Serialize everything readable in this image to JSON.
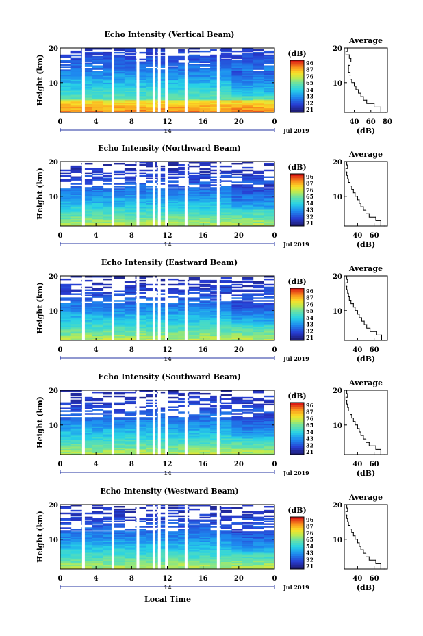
{
  "x_axis_label": "Local Time",
  "chart_data": [
    {
      "type": "heatmap",
      "title": "Echo Intensity (Vertical Beam)",
      "ylabel": "Height (km)",
      "x_ticks": [
        "0",
        "4",
        "8",
        "12",
        "16",
        "20",
        "0"
      ],
      "y_ticks": [
        "20",
        "10"
      ],
      "date_day": "14",
      "date_month": "Jul 2019",
      "xlim": [
        0,
        24
      ],
      "ylim": [
        1.5,
        20
      ],
      "colorbar": {
        "label": "(dB)",
        "ticks": [
          "96",
          "87",
          "76",
          "65",
          "54",
          "43",
          "32",
          "21"
        ],
        "range": [
          21,
          96
        ]
      },
      "gap_times": [
        2.6,
        5.9,
        8.7,
        10.5,
        11.1,
        11.9,
        14.1,
        17.7
      ],
      "profile": {
        "title": "Average",
        "xlabel": "(dB)",
        "x_ticks": [
          "40",
          "60",
          "80"
        ],
        "xlim": [
          28,
          80
        ],
        "height": [
          1.5,
          3,
          4,
          5,
          6,
          7,
          8,
          9,
          10,
          11,
          12,
          13,
          14,
          15,
          16,
          17,
          18,
          19,
          20
        ],
        "value": [
          78,
          72,
          64,
          55,
          51,
          48,
          45,
          42,
          40,
          37,
          35,
          35,
          33,
          33,
          35,
          36,
          34,
          30,
          32
        ]
      }
    },
    {
      "type": "heatmap",
      "title": "Echo Intensity (Northward Beam)",
      "ylabel": "Height (km)",
      "x_ticks": [
        "0",
        "4",
        "8",
        "12",
        "16",
        "20",
        "0"
      ],
      "y_ticks": [
        "20",
        "10"
      ],
      "date_day": "14",
      "date_month": "Jul 2019",
      "xlim": [
        0,
        24
      ],
      "ylim": [
        1.5,
        20
      ],
      "colorbar": {
        "label": "(dB)",
        "ticks": [
          "96",
          "87",
          "76",
          "65",
          "54",
          "43",
          "32",
          "21"
        ],
        "range": [
          21,
          96
        ]
      },
      "gap_times": [
        2.6,
        5.9,
        8.7,
        10.5,
        11.1,
        11.9,
        14.1,
        17.7
      ],
      "profile": {
        "title": "Average",
        "xlabel": "(dB)",
        "x_ticks": [
          "40",
          "60"
        ],
        "xlim": [
          24,
          76
        ],
        "height": [
          1.5,
          3,
          4,
          5,
          6,
          7,
          8,
          9,
          10,
          11,
          12,
          13,
          14,
          15,
          16,
          17,
          18,
          19,
          20
        ],
        "value": [
          72,
          68,
          62,
          54,
          50,
          47,
          44,
          42,
          40,
          37,
          35,
          33,
          31,
          29,
          28,
          27,
          26,
          28,
          27
        ]
      }
    },
    {
      "type": "heatmap",
      "title": "Echo Intensity (Eastward Beam)",
      "ylabel": "Height (km)",
      "x_ticks": [
        "0",
        "4",
        "8",
        "12",
        "16",
        "20",
        "0"
      ],
      "y_ticks": [
        "20",
        "10"
      ],
      "date_day": "14",
      "date_month": "Jul 2019",
      "xlim": [
        0,
        24
      ],
      "ylim": [
        1.5,
        20
      ],
      "colorbar": {
        "label": "(dB)",
        "ticks": [
          "96",
          "87",
          "76",
          "65",
          "54",
          "43",
          "32",
          "21"
        ],
        "range": [
          21,
          96
        ]
      },
      "gap_times": [
        2.6,
        5.9,
        8.7,
        10.5,
        11.1,
        11.9,
        14.1,
        17.7
      ],
      "profile": {
        "title": "Average",
        "xlabel": "(dB)",
        "x_ticks": [
          "40",
          "60"
        ],
        "xlim": [
          24,
          76
        ],
        "height": [
          1.5,
          3,
          4,
          5,
          6,
          7,
          8,
          9,
          10,
          11,
          12,
          13,
          14,
          15,
          16,
          17,
          18,
          19,
          20
        ],
        "value": [
          72,
          69,
          63,
          55,
          51,
          48,
          45,
          42,
          40,
          37,
          35,
          32,
          30,
          29,
          28,
          27,
          26,
          28,
          27
        ]
      }
    },
    {
      "type": "heatmap",
      "title": "Echo Intensity (Southward Beam)",
      "ylabel": "Height (km)",
      "x_ticks": [
        "0",
        "4",
        "8",
        "12",
        "16",
        "20",
        "0"
      ],
      "y_ticks": [
        "20",
        "10"
      ],
      "date_day": "14",
      "date_month": "Jul 2019",
      "xlim": [
        0,
        24
      ],
      "ylim": [
        1.5,
        20
      ],
      "colorbar": {
        "label": "(dB)",
        "ticks": [
          "96",
          "87",
          "76",
          "65",
          "54",
          "43",
          "32",
          "21"
        ],
        "range": [
          21,
          96
        ]
      },
      "gap_times": [
        2.6,
        5.9,
        8.7,
        10.5,
        11.1,
        11.9,
        14.1,
        17.7
      ],
      "profile": {
        "title": "Average",
        "xlabel": "(dB)",
        "x_ticks": [
          "40",
          "60"
        ],
        "xlim": [
          24,
          76
        ],
        "height": [
          1.5,
          3,
          4,
          5,
          6,
          7,
          8,
          9,
          10,
          11,
          12,
          13,
          14,
          15,
          16,
          17,
          18,
          19,
          20
        ],
        "value": [
          72,
          68,
          62,
          54,
          50,
          47,
          44,
          42,
          40,
          37,
          35,
          33,
          31,
          29,
          28,
          27,
          26,
          28,
          27
        ]
      }
    },
    {
      "type": "heatmap",
      "title": "Echo Intensity (Westward Beam)",
      "ylabel": "Height (km)",
      "x_ticks": [
        "0",
        "4",
        "8",
        "12",
        "16",
        "20",
        "0"
      ],
      "y_ticks": [
        "20",
        "10"
      ],
      "date_day": "14",
      "date_month": "Jul 2019",
      "xlim": [
        0,
        24
      ],
      "ylim": [
        1.5,
        20
      ],
      "colorbar": {
        "label": "(dB)",
        "ticks": [
          "96",
          "87",
          "76",
          "65",
          "54",
          "43",
          "32",
          "21"
        ],
        "range": [
          21,
          96
        ]
      },
      "gap_times": [
        2.6,
        5.9,
        8.7,
        10.5,
        11.1,
        11.9,
        14.1,
        17.7
      ],
      "profile": {
        "title": "Average",
        "xlabel": "(dB)",
        "x_ticks": [
          "40",
          "60"
        ],
        "xlim": [
          24,
          76
        ],
        "height": [
          1.5,
          3,
          4,
          5,
          6,
          7,
          8,
          9,
          10,
          11,
          12,
          13,
          14,
          15,
          16,
          17,
          18,
          19,
          20
        ],
        "value": [
          72,
          68,
          62,
          54,
          50,
          47,
          44,
          42,
          40,
          37,
          35,
          33,
          31,
          29,
          28,
          27,
          26,
          28,
          27
        ]
      }
    }
  ]
}
